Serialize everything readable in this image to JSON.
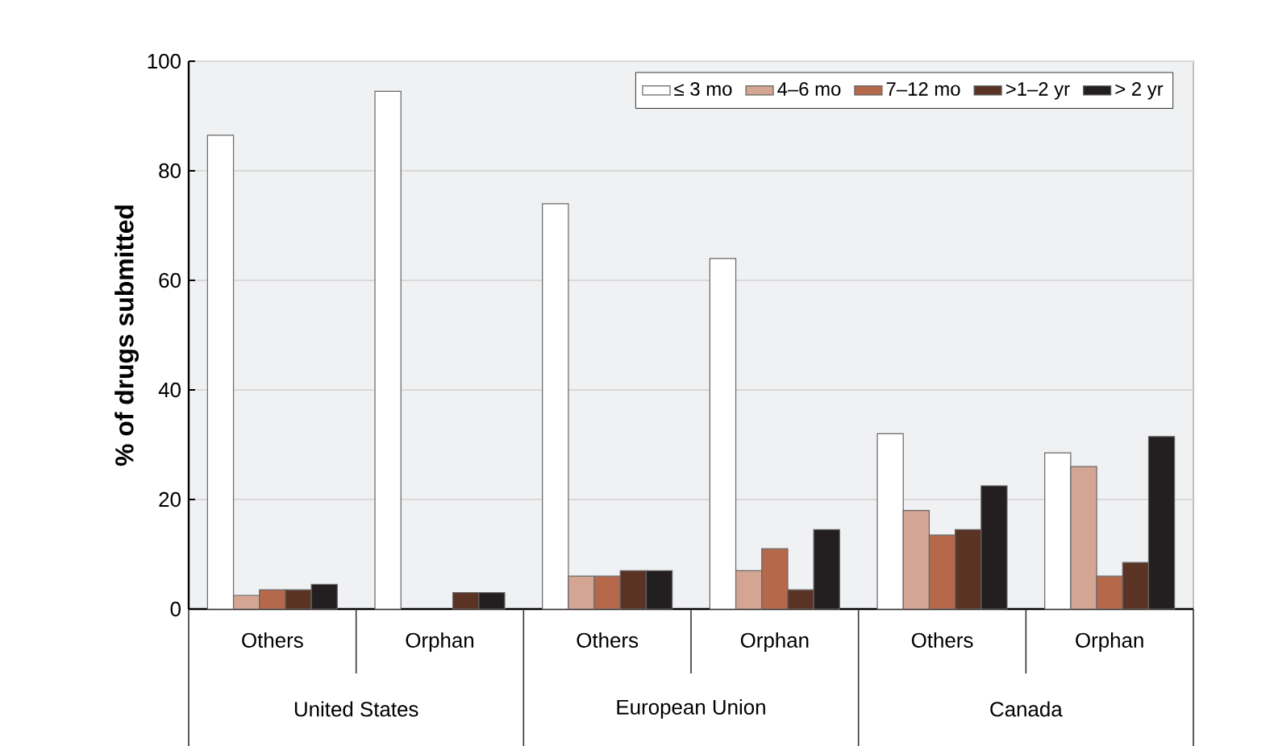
{
  "chart_data": {
    "type": "bar",
    "ylabel": "% of drugs submitted",
    "categories": [
      "Others",
      "Orphan",
      "Others",
      "Orphan",
      "Others",
      "Orphan"
    ],
    "annotations": [
      "United States",
      "European Union",
      "Canada"
    ],
    "series": [
      {
        "name": "≤ 3 mo",
        "color": "#ffffff",
        "values": [
          86.5,
          94.5,
          74,
          64,
          32,
          28.5
        ]
      },
      {
        "name": "4–6 mo",
        "color": "#d4a593",
        "values": [
          2.5,
          null,
          6,
          7,
          18,
          26
        ]
      },
      {
        "name": "7–12 mo",
        "color": "#b5694a",
        "values": [
          3.5,
          null,
          6,
          11,
          13.5,
          6
        ]
      },
      {
        "name": ">1–2 yr",
        "color": "#5a3325",
        "values": [
          3.5,
          3,
          7,
          3.5,
          14.5,
          8.5
        ]
      },
      {
        "name": "> 2 yr",
        "color": "#231f20",
        "values": [
          4.5,
          3,
          7,
          14.5,
          22.5,
          31.5
        ]
      }
    ],
    "ylim": [
      0,
      100
    ],
    "yticks": [
      0,
      20,
      40,
      60,
      80,
      100
    ],
    "grid": "y",
    "legend": "top right"
  }
}
